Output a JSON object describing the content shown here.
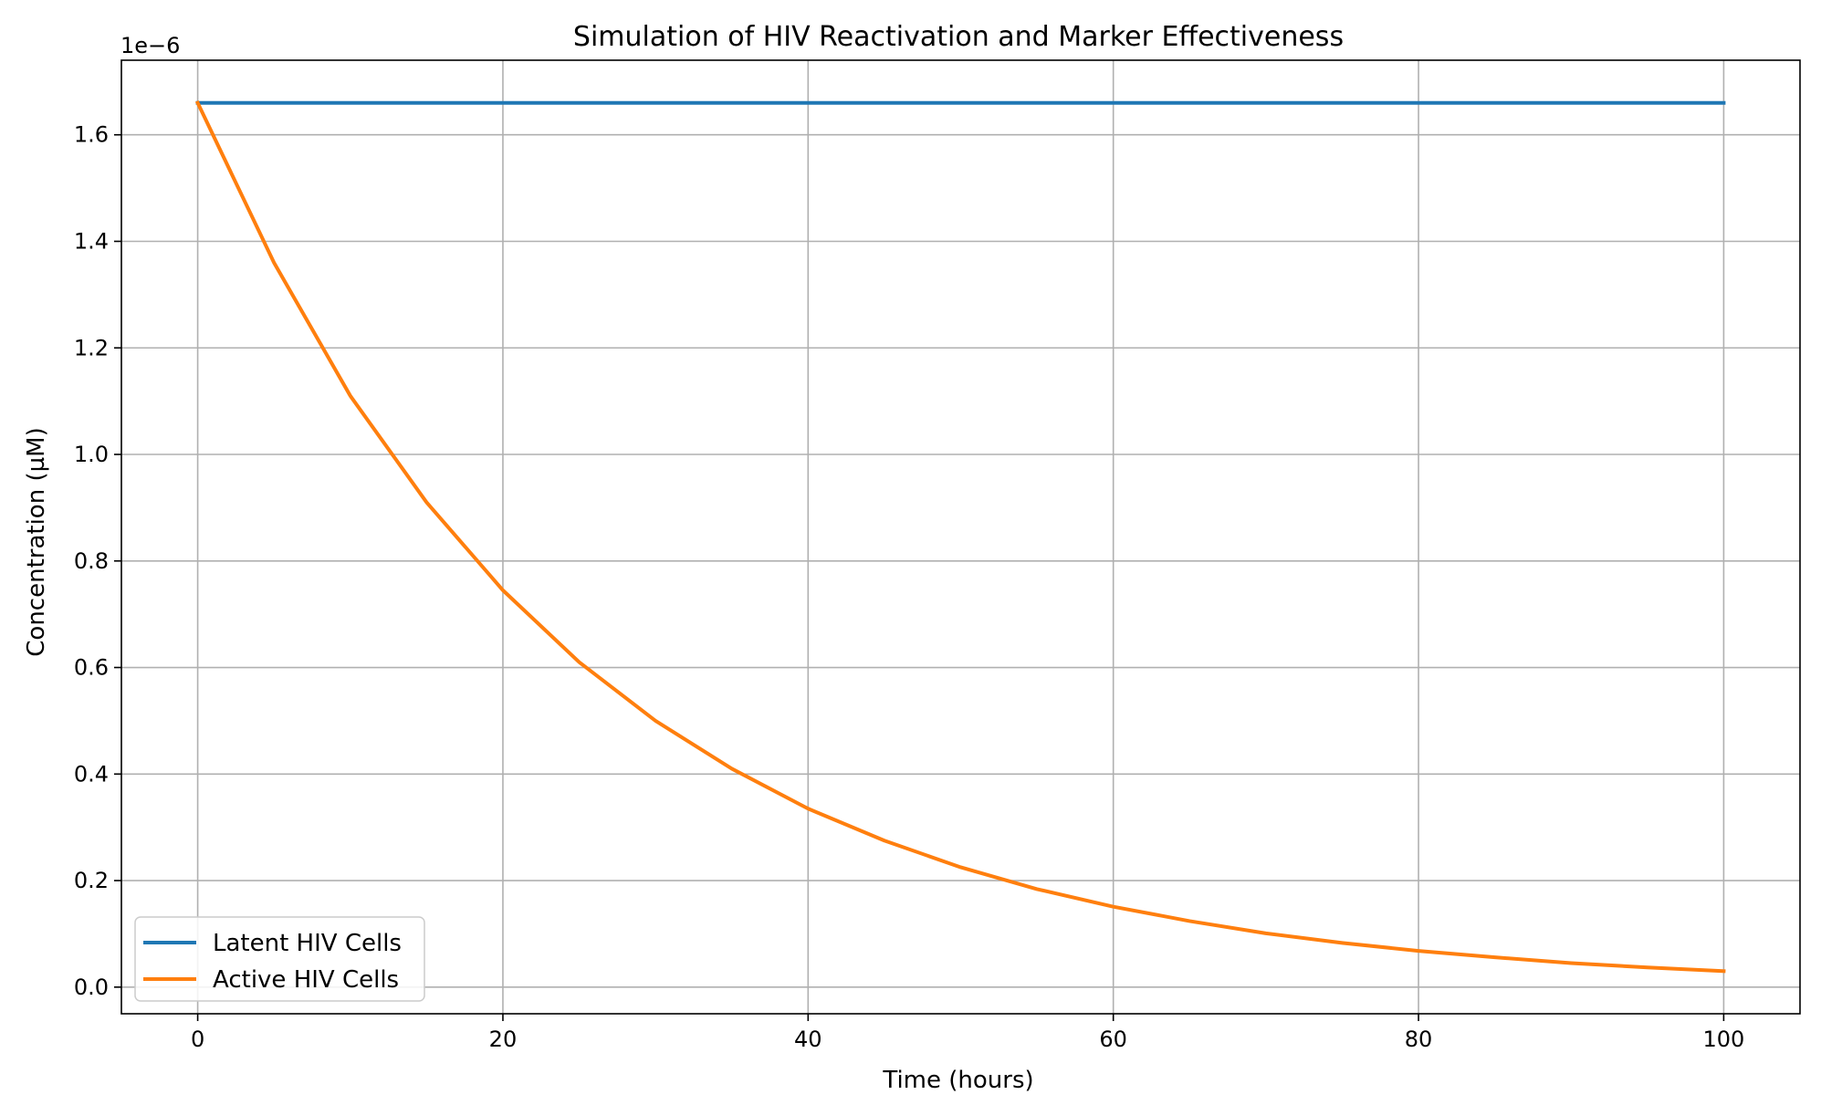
{
  "chart_data": {
    "type": "line",
    "title": "Simulation of HIV Reactivation and Marker Effectiveness",
    "xlabel": "Time (hours)",
    "ylabel": "Concentration (µM)",
    "y_offset_label": "1e−6",
    "xlim": [
      -5,
      105
    ],
    "ylim": [
      -0.05,
      1.74
    ],
    "x_ticks": [
      0,
      20,
      40,
      60,
      80,
      100
    ],
    "x_tick_labels": [
      "0",
      "20",
      "40",
      "60",
      "80",
      "100"
    ],
    "y_ticks": [
      0.0,
      0.2,
      0.4,
      0.6,
      0.8,
      1.0,
      1.2,
      1.4,
      1.6
    ],
    "y_tick_labels": [
      "0.0",
      "0.2",
      "0.4",
      "0.6",
      "0.8",
      "1.0",
      "1.2",
      "1.4",
      "1.6"
    ],
    "grid": true,
    "legend_position": "lower-left",
    "x": [
      0,
      5,
      10,
      15,
      20,
      25,
      30,
      35,
      40,
      45,
      50,
      55,
      60,
      65,
      70,
      75,
      80,
      85,
      90,
      95,
      100
    ],
    "series": [
      {
        "name": "Latent HIV Cells",
        "color": "#1f77b4",
        "values": [
          1.66,
          1.66,
          1.66,
          1.66,
          1.66,
          1.66,
          1.66,
          1.66,
          1.66,
          1.66,
          1.66,
          1.66,
          1.66,
          1.66,
          1.66,
          1.66,
          1.66,
          1.66,
          1.66,
          1.66,
          1.66
        ]
      },
      {
        "name": "Active HIV Cells",
        "color": "#ff7f0e",
        "values": [
          1.66,
          1.36,
          1.11,
          0.91,
          0.745,
          0.61,
          0.5,
          0.41,
          0.335,
          0.275,
          0.225,
          0.184,
          0.151,
          0.124,
          0.101,
          0.083,
          0.068,
          0.056,
          0.045,
          0.037,
          0.03
        ]
      }
    ]
  }
}
